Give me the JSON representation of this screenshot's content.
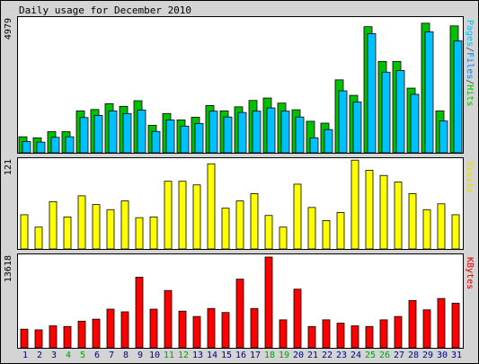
{
  "chart_data": [
    {
      "type": "bar",
      "title": "Daily usage for December 2010",
      "y_tick": "4979",
      "side_label": [
        {
          "text": "Pages",
          "color": "#00c0ff"
        },
        {
          "text": "/",
          "color": "#404040"
        },
        {
          "text": "Files",
          "color": "#0080ff"
        },
        {
          "text": "/",
          "color": "#404040"
        },
        {
          "text": "Hits",
          "color": "#00c000"
        }
      ],
      "ylim": [
        0,
        4979
      ],
      "categories": [
        "1",
        "2",
        "3",
        "4",
        "5",
        "6",
        "7",
        "8",
        "9",
        "10",
        "11",
        "12",
        "13",
        "14",
        "15",
        "16",
        "17",
        "18",
        "19",
        "20",
        "21",
        "22",
        "23",
        "24",
        "25",
        "26",
        "27",
        "28",
        "29",
        "30",
        "31"
      ],
      "series": [
        {
          "name": "Hits",
          "color": "#00c000",
          "values": [
            600,
            560,
            790,
            790,
            1570,
            1620,
            1840,
            1740,
            1950,
            1030,
            1470,
            1230,
            1330,
            1770,
            1570,
            1720,
            1960,
            2050,
            1860,
            1610,
            1180,
            1110,
            2730,
            2150,
            4720,
            3420,
            3420,
            2420,
            4850,
            1570,
            4750
          ]
        },
        {
          "name": "Files",
          "color": "#00c0ff",
          "values": [
            520,
            500,
            680,
            700,
            1420,
            1500,
            1670,
            1570,
            1700,
            900,
            1330,
            1100,
            1200,
            1660,
            1440,
            1610,
            1660,
            1780,
            1660,
            1440,
            660,
            970,
            2420,
            2000,
            4560,
            3120,
            3180,
            2290,
            4630,
            1290,
            4290
          ]
        },
        {
          "name": "Pages",
          "color": "#0080ff",
          "values": [
            0,
            0,
            0,
            0,
            0,
            0,
            0,
            0,
            0,
            0,
            0,
            0,
            0,
            0,
            0,
            0,
            0,
            0,
            0,
            0,
            0,
            0,
            0,
            0,
            0,
            0,
            0,
            0,
            0,
            0,
            0
          ]
        }
      ]
    },
    {
      "type": "bar",
      "y_tick": "121",
      "side_label": [
        {
          "text": "Visits",
          "color": "#e0e000"
        }
      ],
      "ylim": [
        0,
        121
      ],
      "categories": [
        "1",
        "2",
        "3",
        "4",
        "5",
        "6",
        "7",
        "8",
        "9",
        "10",
        "11",
        "12",
        "13",
        "14",
        "15",
        "16",
        "17",
        "18",
        "19",
        "20",
        "21",
        "22",
        "23",
        "24",
        "25",
        "26",
        "27",
        "28",
        "29",
        "30",
        "31"
      ],
      "series": [
        {
          "name": "Visits",
          "color": "#ffff00",
          "values": [
            47,
            30,
            65,
            44,
            73,
            61,
            54,
            66,
            43,
            44,
            93,
            93,
            88,
            117,
            56,
            66,
            76,
            46,
            30,
            89,
            57,
            39,
            50,
            122,
            108,
            101,
            92,
            76,
            54,
            62,
            47
          ]
        }
      ]
    },
    {
      "type": "bar",
      "y_tick": "13618",
      "side_label": [
        {
          "text": "KBytes",
          "color": "#e00000"
        }
      ],
      "ylim": [
        0,
        13618
      ],
      "categories": [
        "1",
        "2",
        "3",
        "4",
        "5",
        "6",
        "7",
        "8",
        "9",
        "10",
        "11",
        "12",
        "13",
        "14",
        "15",
        "16",
        "17",
        "18",
        "19",
        "20",
        "21",
        "22",
        "23",
        "24",
        "25",
        "26",
        "27",
        "28",
        "29",
        "30",
        "31"
      ],
      "series": [
        {
          "name": "KBytes",
          "color": "#ff0000",
          "values": [
            2800,
            2700,
            3300,
            3200,
            4000,
            4300,
            5800,
            5400,
            10600,
            5800,
            8600,
            5500,
            4700,
            5900,
            5300,
            10300,
            5900,
            13618,
            4200,
            8800,
            3200,
            4200,
            3700,
            3300,
            3200,
            4200,
            4700,
            7100,
            5700,
            7400,
            6700
          ]
        }
      ]
    }
  ],
  "x_axis": {
    "labels": [
      "1",
      "2",
      "3",
      "4",
      "5",
      "6",
      "7",
      "8",
      "9",
      "10",
      "11",
      "12",
      "13",
      "14",
      "15",
      "16",
      "17",
      "18",
      "19",
      "20",
      "21",
      "22",
      "23",
      "24",
      "25",
      "26",
      "27",
      "28",
      "29",
      "30",
      "31"
    ],
    "weekend_days": [
      "4",
      "5",
      "11",
      "12",
      "18",
      "19",
      "25",
      "26"
    ],
    "weekday_color": "#000080",
    "weekend_color": "#00a000"
  }
}
